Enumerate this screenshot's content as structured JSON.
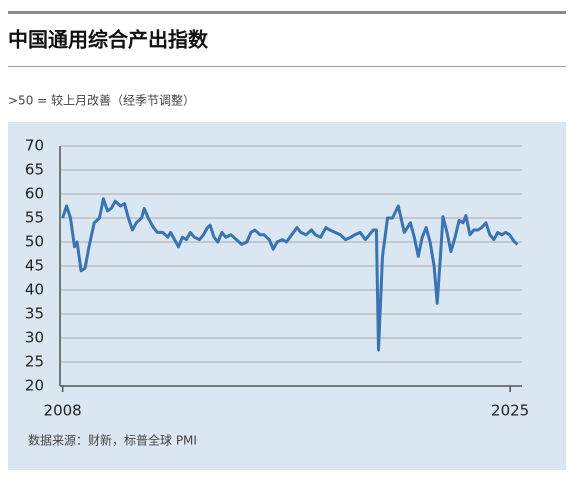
{
  "chart_data": {
    "type": "line",
    "title": "中国通用综合产出指数",
    "subtitle": ">50 = 较上月改善（经季节调整）",
    "source": "数据来源：财新，标普全球 PMI",
    "color": "#3a73b1",
    "grid": true,
    "xlim": [
      2007.9,
      2025.45
    ],
    "xticks": [
      2008,
      2025
    ],
    "ylim": [
      20,
      70
    ],
    "yticks": [
      20,
      25,
      30,
      35,
      40,
      45,
      50,
      55,
      60,
      65,
      70
    ],
    "x": [
      2008.0,
      2008.15,
      2008.3,
      2008.45,
      2008.55,
      2008.7,
      2008.85,
      2009.0,
      2009.2,
      2009.4,
      2009.55,
      2009.7,
      2009.85,
      2010.0,
      2010.2,
      2010.35,
      2010.5,
      2010.65,
      2010.8,
      2011.0,
      2011.1,
      2011.25,
      2011.45,
      2011.6,
      2011.8,
      2012.0,
      2012.1,
      2012.25,
      2012.4,
      2012.55,
      2012.7,
      2012.85,
      2013.0,
      2013.2,
      2013.35,
      2013.5,
      2013.6,
      2013.75,
      2013.9,
      2014.05,
      2014.2,
      2014.4,
      2014.6,
      2014.8,
      2015.0,
      2015.15,
      2015.3,
      2015.5,
      2015.65,
      2015.85,
      2016.0,
      2016.15,
      2016.35,
      2016.5,
      2016.7,
      2016.9,
      2017.05,
      2017.25,
      2017.45,
      2017.6,
      2017.8,
      2018.0,
      2018.15,
      2018.35,
      2018.55,
      2018.75,
      2018.95,
      2019.1,
      2019.3,
      2019.5,
      2019.65,
      2019.8,
      2019.92,
      2020.0,
      2020.15,
      2020.34,
      2020.53,
      2020.75,
      2020.98,
      2021.21,
      2021.36,
      2021.51,
      2021.66,
      2021.81,
      2021.96,
      2022.11,
      2022.23,
      2022.34,
      2022.45,
      2022.6,
      2022.75,
      2022.91,
      2023.06,
      2023.21,
      2023.32,
      2023.47,
      2023.62,
      2023.77,
      2023.92,
      2024.08,
      2024.23,
      2024.38,
      2024.53,
      2024.68,
      2024.83,
      2024.98,
      2025.17,
      2025.28
    ],
    "values": [
      55,
      57.5,
      55,
      49,
      50,
      44,
      44.5,
      49,
      54,
      55,
      59,
      56.5,
      57,
      58.5,
      57.5,
      58,
      55,
      52.5,
      54,
      55,
      57,
      55,
      53,
      52,
      52,
      51,
      52,
      50.5,
      49,
      51,
      50.5,
      52,
      51,
      50.5,
      51.5,
      53,
      53.5,
      51,
      50,
      52,
      51,
      51.5,
      50.5,
      49.5,
      50,
      52,
      52.5,
      51.5,
      51.5,
      50.5,
      48.5,
      50,
      50.5,
      50,
      51.5,
      53,
      52,
      51.5,
      52.5,
      51.5,
      51,
      53,
      52.5,
      52,
      51.5,
      50.5,
      51,
      51.5,
      52,
      50.5,
      51.5,
      52.5,
      52.5,
      27.5,
      47,
      55,
      55,
      57.5,
      52,
      54,
      51,
      47,
      51,
      53,
      50,
      45,
      37.2,
      46,
      55.3,
      52,
      48,
      51,
      54.5,
      54,
      55.5,
      51.5,
      52.5,
      52.5,
      53,
      54,
      51.5,
      50.5,
      52,
      51.5,
      52,
      51.5,
      50,
      49.5
    ]
  }
}
